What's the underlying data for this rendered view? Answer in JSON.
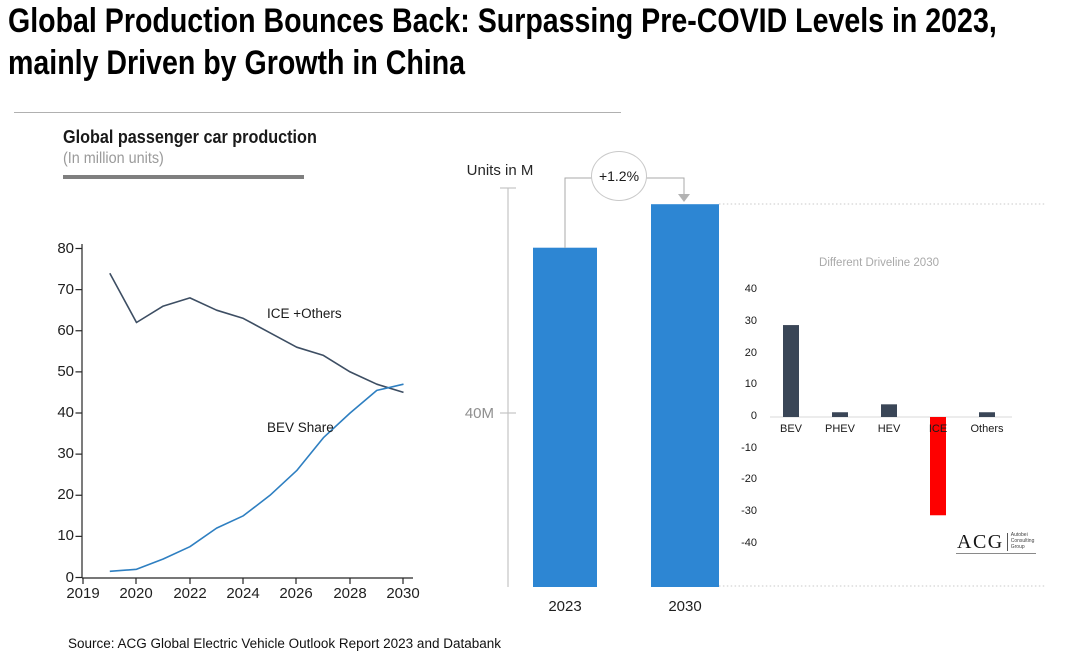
{
  "page": {
    "title_lines": [
      "Global Production Bounces Back: Surpassing Pre-COVID Levels in 2023,",
      "mainly Driven by Growth in China"
    ],
    "source": "Source: ACG Global Electric Vehicle Outlook Report 2023 and Databank"
  },
  "logo": {
    "acronym": "ACG",
    "name_lines": [
      "Autobei",
      "Consulting",
      "Group"
    ]
  },
  "chart_data": [
    {
      "id": "global-passenger-car-production",
      "type": "line",
      "title": "Global passenger car production",
      "subtitle": "(In million units)",
      "x": [
        2019,
        2020,
        2021,
        2022,
        2023,
        2024,
        2025,
        2026,
        2027,
        2028,
        2029,
        2030
      ],
      "xtick_labels": [
        "2019",
        "2020",
        "2022",
        "2024",
        "2026",
        "2028",
        "2030"
      ],
      "yticks": [
        0,
        10,
        20,
        30,
        40,
        50,
        60,
        70,
        80
      ],
      "ylim": [
        0,
        80
      ],
      "grid": false,
      "legend_position": "inline-labels",
      "series": [
        {
          "name": "ICE +Others",
          "color": "#3d4e63",
          "values": [
            74,
            62,
            66,
            68,
            65,
            63,
            59.5,
            56,
            54,
            50,
            47,
            45
          ]
        },
        {
          "name": "BEV Share",
          "color": "#2e7fc1",
          "values": [
            1.5,
            2,
            4.5,
            7.5,
            12,
            15,
            20,
            26,
            34,
            40,
            45.5,
            47
          ]
        }
      ]
    },
    {
      "id": "total-production-2023-vs-2030",
      "type": "bar",
      "axis_label": "Units in M",
      "categories": [
        "2023",
        "2030"
      ],
      "values": [
        78,
        88
      ],
      "unit": "million units",
      "bar_color": "#2d86d3",
      "ref_tick_label": "40M",
      "ref_tick_value": 40,
      "annotation": "+1.2%"
    },
    {
      "id": "different-driveline-2030",
      "type": "bar",
      "title": "Different Driveline 2030",
      "categories": [
        "BEV",
        "PHEV",
        "HEV",
        "ICE",
        "Others"
      ],
      "values": [
        29,
        1.5,
        4,
        -31,
        1.5
      ],
      "colors": [
        "#3a4657",
        "#3a4657",
        "#3a4657",
        "#fe0000",
        "#3a4657"
      ],
      "yticks": [
        40,
        30,
        20,
        10,
        0,
        -10,
        -20,
        -30,
        -40
      ],
      "ylim": [
        -40,
        40
      ]
    }
  ]
}
